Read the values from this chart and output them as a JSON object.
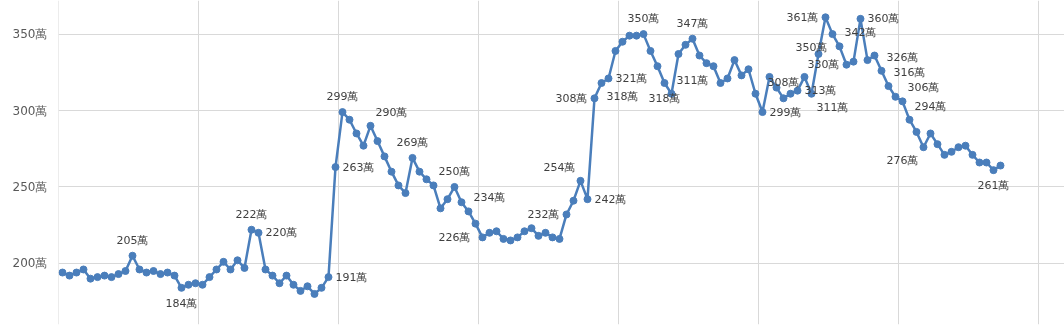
{
  "chart_data": {
    "type": "line",
    "categories": [
      null,
      null,
      null,
      null,
      null,
      null,
      null,
      null,
      null,
      null,
      null,
      null,
      null,
      null,
      null,
      null,
      null,
      null,
      null,
      null,
      null,
      null,
      null,
      null,
      null,
      null,
      null,
      null,
      null,
      null,
      null,
      null,
      null,
      null,
      null,
      null,
      null,
      null,
      null,
      null,
      null,
      null,
      null,
      null,
      null,
      null,
      null,
      null,
      null,
      null,
      null,
      null,
      null,
      null,
      null,
      null,
      null,
      null,
      null,
      null,
      null,
      null,
      null,
      null,
      null,
      null,
      null,
      null,
      null,
      null,
      null,
      null,
      null,
      null,
      null,
      null,
      null,
      null,
      null,
      null,
      null,
      null,
      null,
      null,
      null,
      null,
      null,
      null,
      null,
      null,
      null,
      null,
      null,
      null,
      null,
      null,
      null,
      null,
      null,
      null,
      null,
      null,
      null,
      null,
      null,
      null,
      null,
      null,
      null,
      null,
      null,
      null,
      null,
      null,
      null,
      null,
      null,
      null,
      null,
      null,
      null,
      null,
      null,
      null,
      null,
      null,
      null,
      null,
      null,
      null,
      null,
      null,
      null,
      null,
      null
    ],
    "values": [
      194,
      192,
      194,
      196,
      190,
      191,
      192,
      191,
      193,
      195,
      205,
      196,
      194,
      195,
      193,
      194,
      192,
      184,
      186,
      187,
      186,
      191,
      196,
      201,
      196,
      202,
      197,
      222,
      220,
      196,
      192,
      187,
      192,
      186,
      182,
      185,
      180,
      184,
      191,
      263,
      299,
      294,
      285,
      277,
      290,
      280,
      270,
      260,
      251,
      246,
      269,
      260,
      255,
      251,
      236,
      242,
      250,
      240,
      234,
      226,
      217,
      220,
      221,
      216,
      215,
      217,
      221,
      223,
      218,
      220,
      217,
      216,
      232,
      241,
      254,
      242,
      308,
      318,
      321,
      339,
      345,
      349,
      349,
      350,
      339,
      329,
      318,
      311,
      337,
      343,
      347,
      336,
      331,
      329,
      318,
      321,
      333,
      323,
      327,
      311,
      299,
      322,
      315,
      308,
      311,
      313,
      322,
      311,
      337,
      361,
      350,
      342,
      330,
      332,
      360,
      333,
      336,
      326,
      316,
      309,
      306,
      294,
      286,
      276,
      285,
      278,
      271,
      273,
      276,
      277,
      271,
      266,
      266,
      261,
      264
    ],
    "value_labels": [
      null,
      null,
      null,
      null,
      null,
      null,
      null,
      null,
      null,
      null,
      "205萬",
      null,
      null,
      null,
      null,
      null,
      null,
      "184萬",
      null,
      null,
      null,
      null,
      null,
      null,
      null,
      null,
      null,
      "222萬",
      "220萬",
      null,
      null,
      null,
      null,
      null,
      null,
      null,
      null,
      null,
      "191萬",
      "263萬",
      "299萬",
      null,
      null,
      null,
      "290萬",
      null,
      null,
      null,
      null,
      null,
      "269萬",
      null,
      null,
      null,
      null,
      null,
      "250萬",
      null,
      "234萬",
      "226萬",
      null,
      null,
      null,
      null,
      null,
      null,
      null,
      null,
      null,
      null,
      null,
      null,
      "232萬",
      null,
      "254萬",
      "242萬",
      "308萬",
      "318萬",
      "321萬",
      null,
      null,
      null,
      null,
      "350萬",
      null,
      null,
      "318萬",
      "311萬",
      null,
      null,
      "347萬",
      null,
      null,
      null,
      null,
      null,
      null,
      null,
      null,
      null,
      "299萬",
      null,
      null,
      "308萬",
      null,
      "313萬",
      null,
      "311萬",
      null,
      "361萬",
      "350萬",
      "342萬",
      "330萬",
      null,
      "360萬",
      null,
      null,
      "326萬",
      "316萬",
      null,
      "306萬",
      "294萬",
      null,
      "276萬",
      null,
      null,
      null,
      null,
      null,
      null,
      null,
      null,
      null,
      "261萬",
      null
    ],
    "color": "#4a7ebb",
    "ylim": [
      160,
      372
    ],
    "yticks": [
      {
        "value": 200,
        "label": "200萬"
      },
      {
        "value": 250,
        "label": "250萬"
      },
      {
        "value": 300,
        "label": "300萬"
      },
      {
        "value": 350,
        "label": "350萬"
      }
    ],
    "grid": true,
    "marker": "circle",
    "tick_labels": "y"
  }
}
